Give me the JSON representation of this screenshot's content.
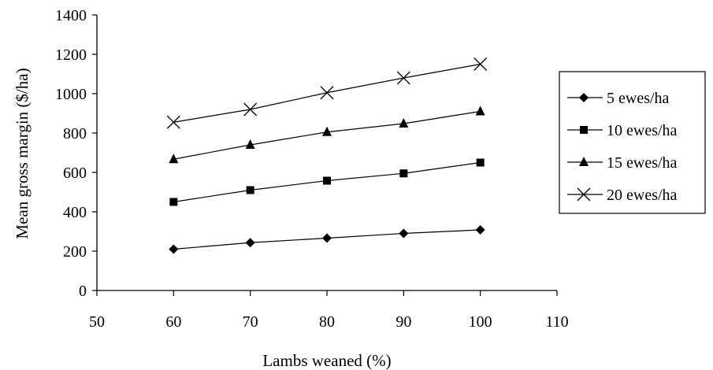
{
  "chart_data": {
    "type": "line",
    "title": "",
    "xlabel": "Lambs weaned (%)",
    "ylabel": "Mean gross margin ($/ha)",
    "xlim": [
      50,
      110
    ],
    "ylim": [
      0,
      1400
    ],
    "x_ticks": [
      50,
      60,
      70,
      80,
      90,
      100,
      110
    ],
    "y_ticks": [
      0,
      200,
      400,
      600,
      800,
      1000,
      1200,
      1400
    ],
    "grid": false,
    "legend_position": "right",
    "x": [
      60,
      70,
      80,
      90,
      100
    ],
    "series": [
      {
        "name": "5 ewes/ha",
        "marker": "diamond",
        "values": [
          210,
          243,
          266,
          290,
          308
        ]
      },
      {
        "name": "10 ewes/ha",
        "marker": "square",
        "values": [
          450,
          510,
          558,
          595,
          650
        ]
      },
      {
        "name": "15 ewes/ha",
        "marker": "triangle",
        "values": [
          667,
          740,
          805,
          848,
          910
        ]
      },
      {
        "name": "20 ewes/ha",
        "marker": "cross",
        "values": [
          855,
          920,
          1005,
          1080,
          1150
        ]
      }
    ]
  }
}
